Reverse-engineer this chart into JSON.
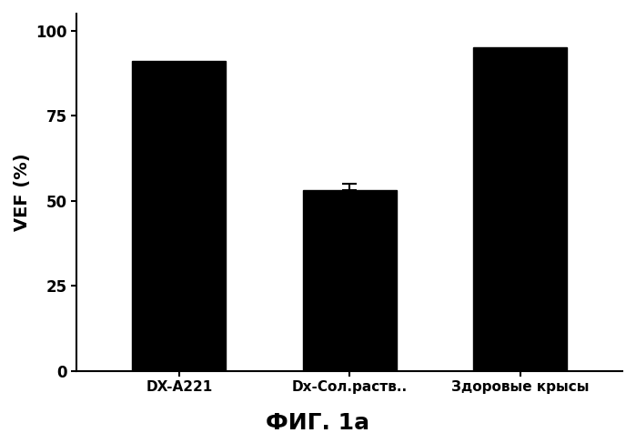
{
  "categories": [
    "DX-A221",
    "Dx-Сол.раств..",
    "Здоровые крысы"
  ],
  "values": [
    91.0,
    53.0,
    95.0
  ],
  "error_middle": 2.0,
  "bar_color": "#000000",
  "bar_width": 0.55,
  "ylabel": "VEF (%)",
  "ylim": [
    0,
    105
  ],
  "yticks": [
    0,
    25,
    50,
    75,
    100
  ],
  "figure_title": "ФИГ. 1а",
  "background_color": "#ffffff",
  "ylabel_fontsize": 14,
  "tick_fontsize": 12,
  "title_fontsize": 18,
  "xtick_fontsize": 11
}
